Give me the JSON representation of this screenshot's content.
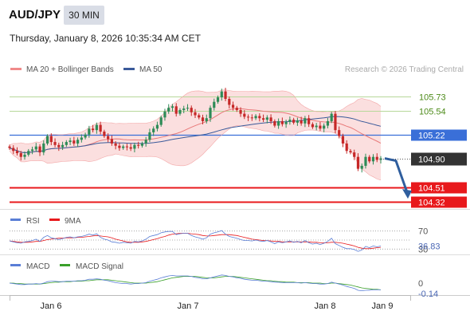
{
  "header": {
    "symbol": "AUD/JPY",
    "timeframe": "30 MIN",
    "timestamp": "Thursday, January 8, 2026 10:35:34 AM CET"
  },
  "copyright": "Research © 2026 Trading Central",
  "colors": {
    "bull": "#2e8b57",
    "bear": "#c62828",
    "bollinger_fill": "#f9d4d4",
    "ma20": "#e87a7a",
    "ma50": "#3a5a9a",
    "resistance": "#b7d89a",
    "pivot": "#3a6fd8",
    "support": "#e8191c",
    "arrow": "#2f5e9e",
    "rsi": "#5a7ed6",
    "rsi_ma": "#e8191c",
    "macd": "#5a7ed6",
    "macd_signal": "#3aa02a"
  },
  "chart_data": [
    {
      "type": "candlestick",
      "legend": [
        {
          "name": "MA 20 + Bollinger Bands",
          "color": "#f08a8a"
        },
        {
          "name": "MA 50",
          "color": "#3a5a9a"
        }
      ],
      "ylim": [
        104.22,
        106.0
      ],
      "levels": [
        {
          "value": 105.73,
          "label": "105.73",
          "kind": "resistance"
        },
        {
          "value": 105.54,
          "label": "105.54",
          "kind": "resistance"
        },
        {
          "value": 105.22,
          "label": "105.22",
          "kind": "pivot"
        },
        {
          "value": 104.51,
          "label": "104.51",
          "kind": "support"
        },
        {
          "value": 104.32,
          "label": "104.32",
          "kind": "support"
        }
      ],
      "last_price": {
        "value": 104.9,
        "label": "104.90"
      },
      "forecast_arrow": {
        "from": 104.9,
        "to": 104.38
      },
      "x_ticks": [
        "Jan 6",
        "Jan 7",
        "Jan 8",
        "Jan 9"
      ],
      "closes": [
        105.04,
        105.0,
        104.97,
        104.92,
        104.95,
        105.0,
        105.02,
        105.06,
        104.98,
        105.1,
        105.2,
        105.12,
        105.08,
        105.05,
        105.08,
        105.12,
        105.14,
        105.1,
        105.15,
        105.18,
        105.22,
        105.3,
        105.28,
        105.35,
        105.26,
        105.2,
        105.16,
        105.1,
        105.07,
        105.04,
        105.06,
        105.05,
        105.03,
        105.08,
        105.07,
        105.1,
        105.15,
        105.25,
        105.3,
        105.35,
        105.45,
        105.53,
        105.58,
        105.6,
        105.5,
        105.55,
        105.57,
        105.58,
        105.52,
        105.48,
        105.45,
        105.4,
        105.44,
        105.58,
        105.66,
        105.72,
        105.8,
        105.7,
        105.62,
        105.58,
        105.55,
        105.5,
        105.46,
        105.45,
        105.44,
        105.47,
        105.44,
        105.42,
        105.45,
        105.4,
        105.34,
        105.4,
        105.36,
        105.39,
        105.42,
        105.38,
        105.41,
        105.37,
        105.44,
        105.36,
        105.32,
        105.34,
        105.3,
        105.34,
        105.4,
        105.5,
        105.28,
        105.2,
        105.1,
        105.0,
        104.98,
        104.92,
        104.76,
        104.8,
        104.92,
        104.86,
        104.92,
        104.88,
        104.9
      ]
    },
    {
      "type": "line",
      "name": "RSI panel",
      "legend": [
        {
          "name": "RSI",
          "color": "#5a7ed6"
        },
        {
          "name": "9MA",
          "color": "#e8191c"
        }
      ],
      "ylim": [
        20,
        80
      ],
      "ref_lines": [
        70,
        50,
        30
      ],
      "ref_label": "70",
      "ref_label_2": "30",
      "last_value": {
        "value": 36.83,
        "label": "36.83"
      },
      "rsi": [
        48,
        46,
        44,
        43,
        46,
        47,
        49,
        52,
        47,
        56,
        60,
        55,
        53,
        51,
        53,
        56,
        57,
        55,
        57,
        58,
        60,
        63,
        61,
        64,
        56,
        52,
        50,
        46,
        45,
        43,
        45,
        44,
        43,
        47,
        46,
        48,
        52,
        58,
        60,
        62,
        66,
        68,
        69,
        69,
        62,
        64,
        65,
        65,
        60,
        57,
        55,
        52,
        55,
        63,
        66,
        68,
        71,
        63,
        58,
        56,
        54,
        51,
        49,
        49,
        48,
        50,
        48,
        47,
        49,
        46,
        42,
        46,
        44,
        46,
        48,
        45,
        47,
        44,
        49,
        44,
        41,
        43,
        40,
        43,
        47,
        54,
        42,
        38,
        34,
        31,
        31,
        29,
        25,
        28,
        36,
        33,
        37,
        35,
        36.83
      ],
      "ma9": [
        48,
        47,
        46,
        45,
        45,
        45,
        46,
        47,
        47,
        49,
        51,
        52,
        53,
        54,
        54,
        55,
        55,
        55,
        56,
        56,
        57,
        58,
        59,
        60,
        59,
        58,
        57,
        55,
        52,
        50,
        48,
        46,
        45,
        45,
        45,
        46,
        47,
        49,
        51,
        53,
        56,
        58,
        61,
        63,
        64,
        65,
        65,
        65,
        64,
        63,
        62,
        60,
        59,
        59,
        60,
        61,
        62,
        62,
        62,
        61,
        60,
        58,
        56,
        54,
        52,
        51,
        50,
        49,
        49,
        48,
        47,
        47,
        46,
        46,
        46,
        46,
        46,
        46,
        46,
        46,
        45,
        45,
        44,
        44,
        44,
        45,
        45,
        44,
        43,
        41,
        39,
        37,
        34,
        32,
        31,
        31,
        32,
        33,
        34
      ]
    },
    {
      "type": "line",
      "name": "MACD panel",
      "legend": [
        {
          "name": "MACD",
          "color": "#5a7ed6"
        },
        {
          "name": "MACD Signal",
          "color": "#3aa02a"
        }
      ],
      "ylim": [
        -0.25,
        0.25
      ],
      "zero_label": "0",
      "last_value": {
        "value": -0.14,
        "label": "-0.14"
      },
      "macd": [
        0.0,
        -0.01,
        -0.02,
        -0.03,
        -0.03,
        -0.02,
        -0.02,
        -0.01,
        -0.02,
        0.0,
        0.03,
        0.04,
        0.04,
        0.03,
        0.03,
        0.04,
        0.04,
        0.04,
        0.05,
        0.05,
        0.06,
        0.08,
        0.08,
        0.09,
        0.08,
        0.06,
        0.05,
        0.03,
        0.01,
        0.0,
        -0.01,
        -0.01,
        -0.02,
        -0.01,
        -0.01,
        0.0,
        0.01,
        0.04,
        0.06,
        0.08,
        0.11,
        0.13,
        0.15,
        0.16,
        0.15,
        0.15,
        0.15,
        0.15,
        0.14,
        0.12,
        0.11,
        0.09,
        0.09,
        0.11,
        0.13,
        0.15,
        0.17,
        0.16,
        0.14,
        0.13,
        0.11,
        0.1,
        0.08,
        0.07,
        0.06,
        0.06,
        0.05,
        0.04,
        0.04,
        0.03,
        0.02,
        0.02,
        0.01,
        0.01,
        0.01,
        0.01,
        0.01,
        0.0,
        0.01,
        0.0,
        -0.01,
        -0.01,
        -0.02,
        -0.02,
        -0.01,
        0.02,
        0.0,
        -0.02,
        -0.04,
        -0.07,
        -0.09,
        -0.11,
        -0.15,
        -0.16,
        -0.15,
        -0.15,
        -0.14,
        -0.14,
        -0.14
      ],
      "signal": [
        0.0,
        0.0,
        -0.01,
        -0.01,
        -0.02,
        -0.02,
        -0.02,
        -0.02,
        -0.02,
        -0.01,
        0.0,
        0.01,
        0.02,
        0.02,
        0.03,
        0.03,
        0.03,
        0.04,
        0.04,
        0.04,
        0.05,
        0.05,
        0.06,
        0.07,
        0.07,
        0.07,
        0.07,
        0.06,
        0.05,
        0.04,
        0.03,
        0.02,
        0.01,
        0.0,
        0.0,
        0.0,
        0.0,
        0.01,
        0.02,
        0.03,
        0.05,
        0.07,
        0.09,
        0.11,
        0.12,
        0.13,
        0.14,
        0.14,
        0.14,
        0.14,
        0.13,
        0.12,
        0.11,
        0.11,
        0.11,
        0.12,
        0.13,
        0.14,
        0.14,
        0.14,
        0.13,
        0.12,
        0.11,
        0.1,
        0.09,
        0.08,
        0.07,
        0.06,
        0.05,
        0.05,
        0.04,
        0.03,
        0.03,
        0.02,
        0.02,
        0.02,
        0.01,
        0.01,
        0.01,
        0.01,
        0.0,
        0.0,
        0.0,
        -0.01,
        -0.01,
        0.0,
        0.0,
        -0.01,
        -0.02,
        -0.03,
        -0.04,
        -0.06,
        -0.08,
        -0.1,
        -0.11,
        -0.12,
        -0.13,
        -0.13,
        -0.14
      ]
    }
  ]
}
